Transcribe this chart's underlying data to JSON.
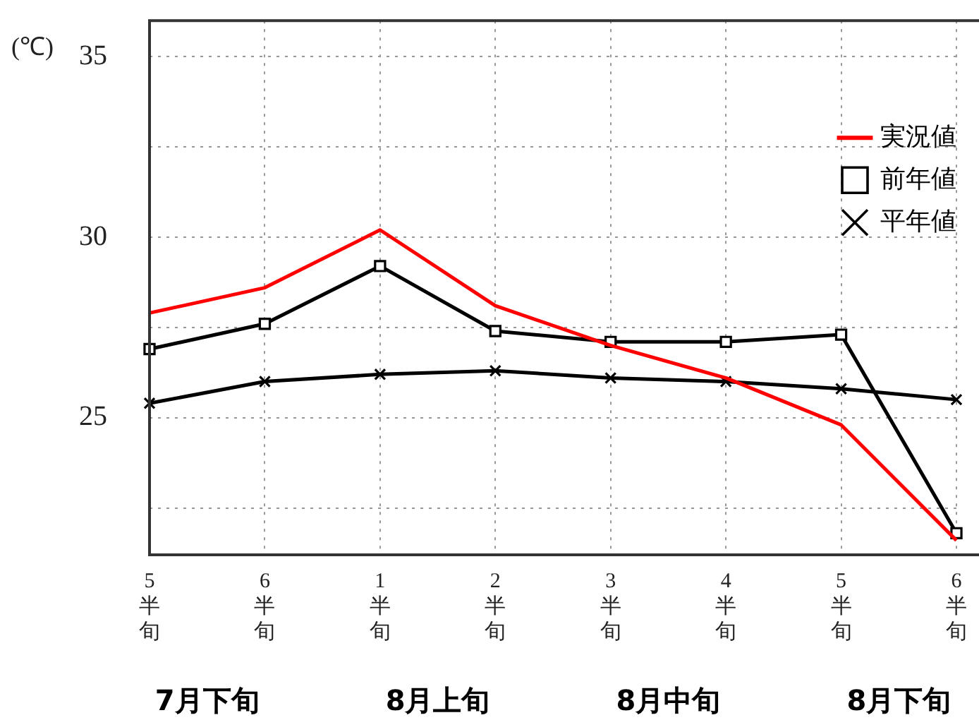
{
  "chart_data": {
    "type": "line",
    "ylabel": "(℃)",
    "categories": [
      "5半旬",
      "6半旬",
      "1半旬",
      "2半旬",
      "3半旬",
      "4半旬",
      "5半旬",
      "6半旬"
    ],
    "series": [
      {
        "name": "実況値",
        "color": "#ff0000",
        "marker": "none",
        "values": [
          27.9,
          28.6,
          30.2,
          28.1,
          27.0,
          26.1,
          24.8,
          21.6
        ]
      },
      {
        "name": "前年値",
        "color": "#000000",
        "marker": "square",
        "values": [
          26.9,
          27.6,
          29.2,
          27.4,
          27.1,
          27.1,
          27.3,
          21.8
        ]
      },
      {
        "name": "平年値",
        "color": "#000000",
        "marker": "cross",
        "values": [
          25.4,
          26.0,
          26.2,
          26.3,
          26.1,
          26.0,
          25.8,
          25.5
        ]
      }
    ],
    "ylim": [
      21.2,
      36
    ],
    "yticks": [
      {
        "value": 22.5,
        "label": null
      },
      25,
      {
        "value": 27.5,
        "label": null
      },
      30,
      {
        "value": 32.5,
        "label": null
      },
      35
    ],
    "grid": true,
    "legend": "top right",
    "line_style": "solid",
    "annotations": [
      "7月下旬",
      "8月上旬",
      "8月中旬",
      "8月下旬"
    ]
  }
}
